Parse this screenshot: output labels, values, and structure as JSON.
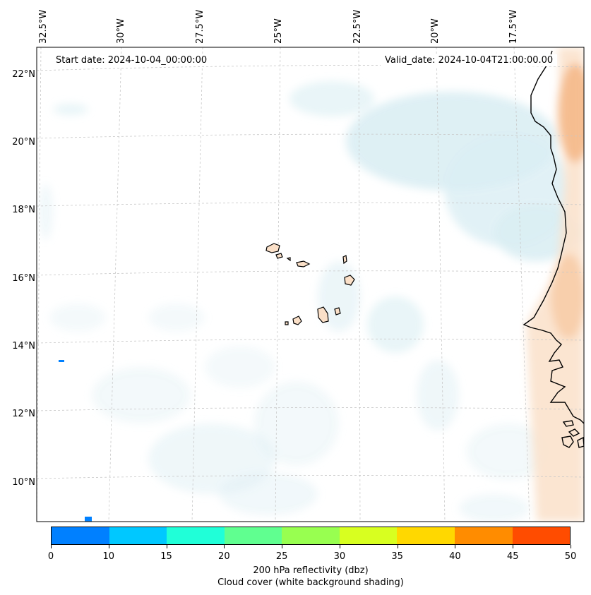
{
  "map": {
    "start_date": "Start date: 2024-10-04_00:00:00",
    "valid_date": "Valid_date: 2024-10-04T21:00:00.00",
    "lat_labels": [
      "22°N",
      "20°N",
      "18°N",
      "16°N",
      "14°N",
      "12°N",
      "10°N"
    ],
    "lon_labels": [
      "32.5°W",
      "30°W",
      "27.5°W",
      "25°W",
      "22.5°W",
      "20°W",
      "17.5°W"
    ],
    "region": "Cabo Verde and West African coast",
    "gridlines": true
  },
  "colorbar": {
    "ticks": [
      "0",
      "10",
      "15",
      "20",
      "25",
      "30",
      "35",
      "40",
      "45",
      "50"
    ],
    "colors": [
      "#0080ff",
      "#00c8ff",
      "#20ffd8",
      "#60ff90",
      "#98ff50",
      "#d8ff20",
      "#ffd800",
      "#ff8c00",
      "#ff4c00"
    ],
    "title_line1": "200 hPa reflectivity (dbz)",
    "title_line2": "Cloud cover (white background shading)"
  },
  "style": {
    "cloud_color": "#d6ecf2",
    "land_warm_color": "#f7c79f",
    "coast_color": "#000000",
    "grid_color": "#c8c8c8"
  }
}
